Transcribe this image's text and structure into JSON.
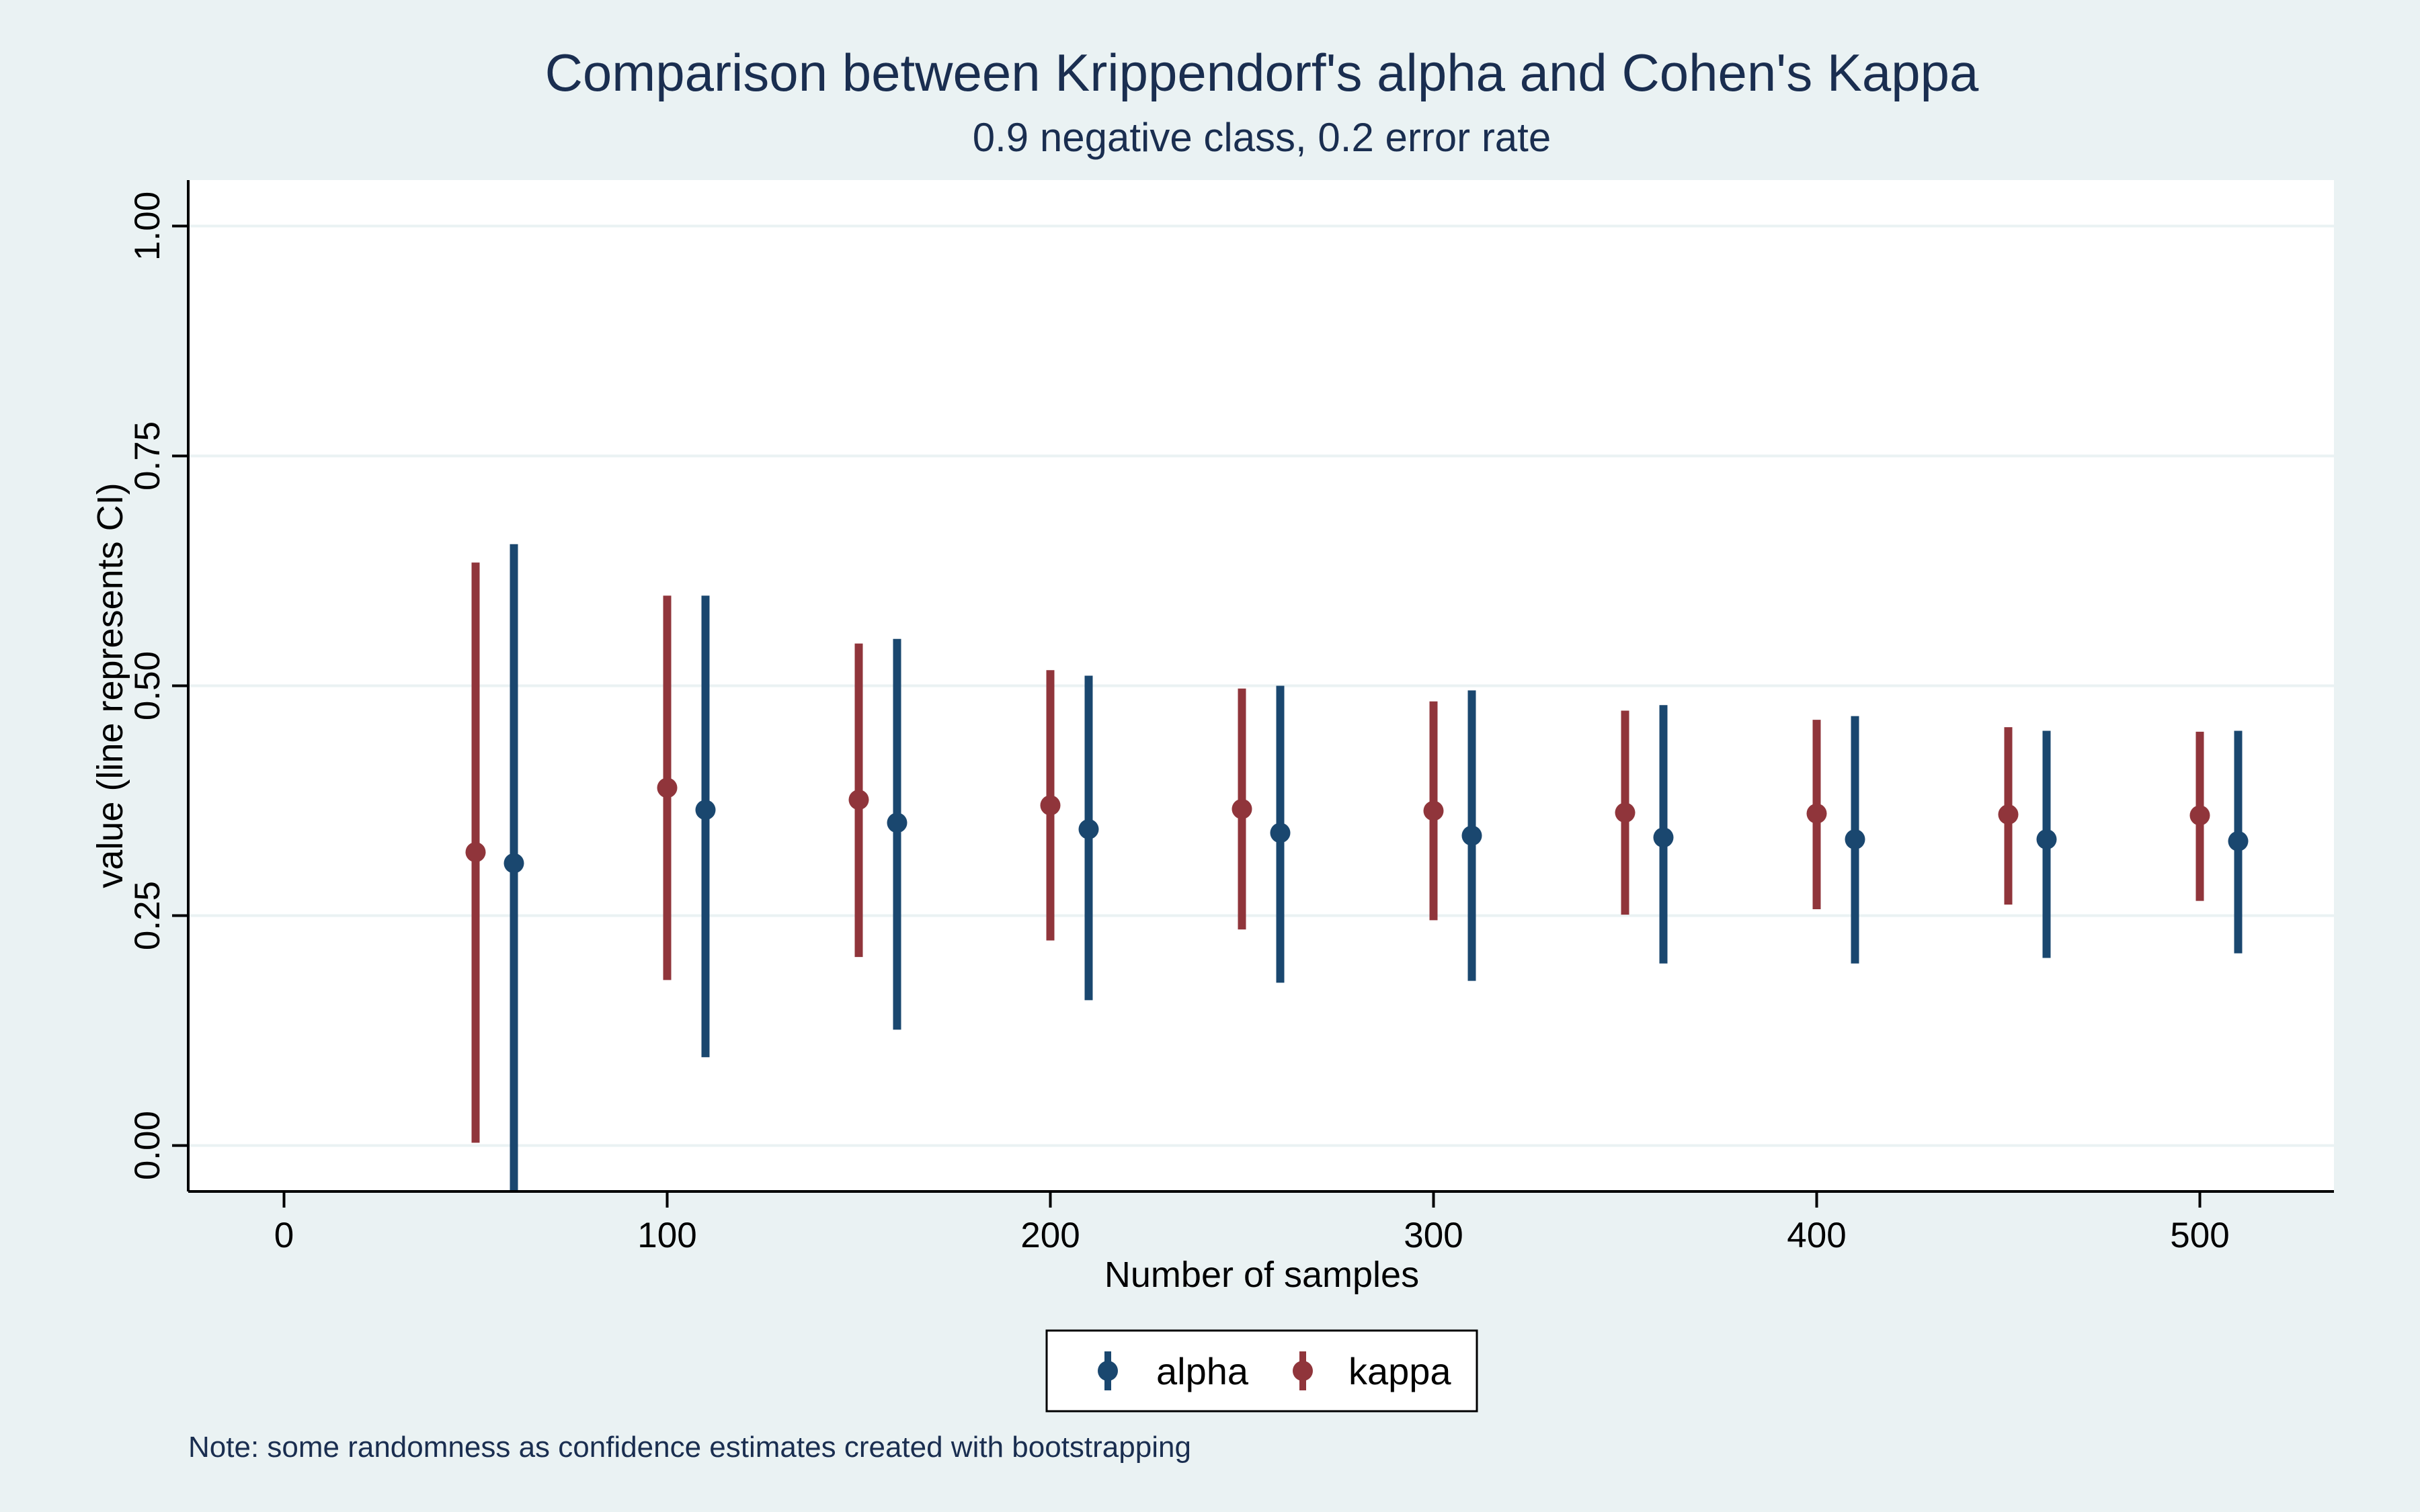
{
  "chart_data": {
    "type": "scatter",
    "title": "Comparison between Krippendorf's alpha and Cohen's Kappa",
    "subtitle": "0.9 negative class, 0.2 error rate",
    "xlabel": "Number of samples",
    "ylabel": "value (line represents CI)",
    "note": "Note: some randomness as confidence estimates created with bootstrapping",
    "xlim": [
      -25,
      535
    ],
    "ylim": [
      -0.05,
      1.05
    ],
    "x_ticks": [
      0,
      100,
      200,
      300,
      400,
      500
    ],
    "x_tick_labels": [
      "0",
      "100",
      "200",
      "300",
      "400",
      "500"
    ],
    "y_ticks": [
      0,
      0.25,
      0.5,
      0.75,
      1.0
    ],
    "y_tick_labels": [
      "0.00",
      "0.25",
      "0.50",
      "0.75",
      "1.00"
    ],
    "grid": true,
    "legend_position": "bottom",
    "series": [
      {
        "name": "alpha",
        "color": "#1a476f",
        "x": [
          60,
          110,
          160,
          210,
          260,
          310,
          360,
          410,
          460,
          510
        ],
        "y": [
          0.307,
          0.365,
          0.351,
          0.344,
          0.34,
          0.337,
          0.335,
          0.333,
          0.333,
          0.331
        ],
        "ci_low": [
          -0.05,
          0.096,
          0.126,
          0.158,
          0.177,
          0.179,
          0.198,
          0.198,
          0.204,
          0.209
        ],
        "ci_high": [
          0.654,
          0.598,
          0.551,
          0.511,
          0.5,
          0.495,
          0.479,
          0.467,
          0.451,
          0.451
        ]
      },
      {
        "name": "kappa",
        "color": "#90353b",
        "x": [
          50,
          100,
          150,
          200,
          250,
          300,
          350,
          400,
          450,
          500
        ],
        "y": [
          0.319,
          0.389,
          0.376,
          0.37,
          0.366,
          0.364,
          0.362,
          0.361,
          0.36,
          0.359
        ],
        "ci_low": [
          0.003,
          0.18,
          0.205,
          0.223,
          0.235,
          0.245,
          0.251,
          0.257,
          0.262,
          0.266
        ],
        "ci_high": [
          0.634,
          0.598,
          0.546,
          0.517,
          0.497,
          0.483,
          0.473,
          0.463,
          0.455,
          0.45
        ]
      }
    ]
  }
}
